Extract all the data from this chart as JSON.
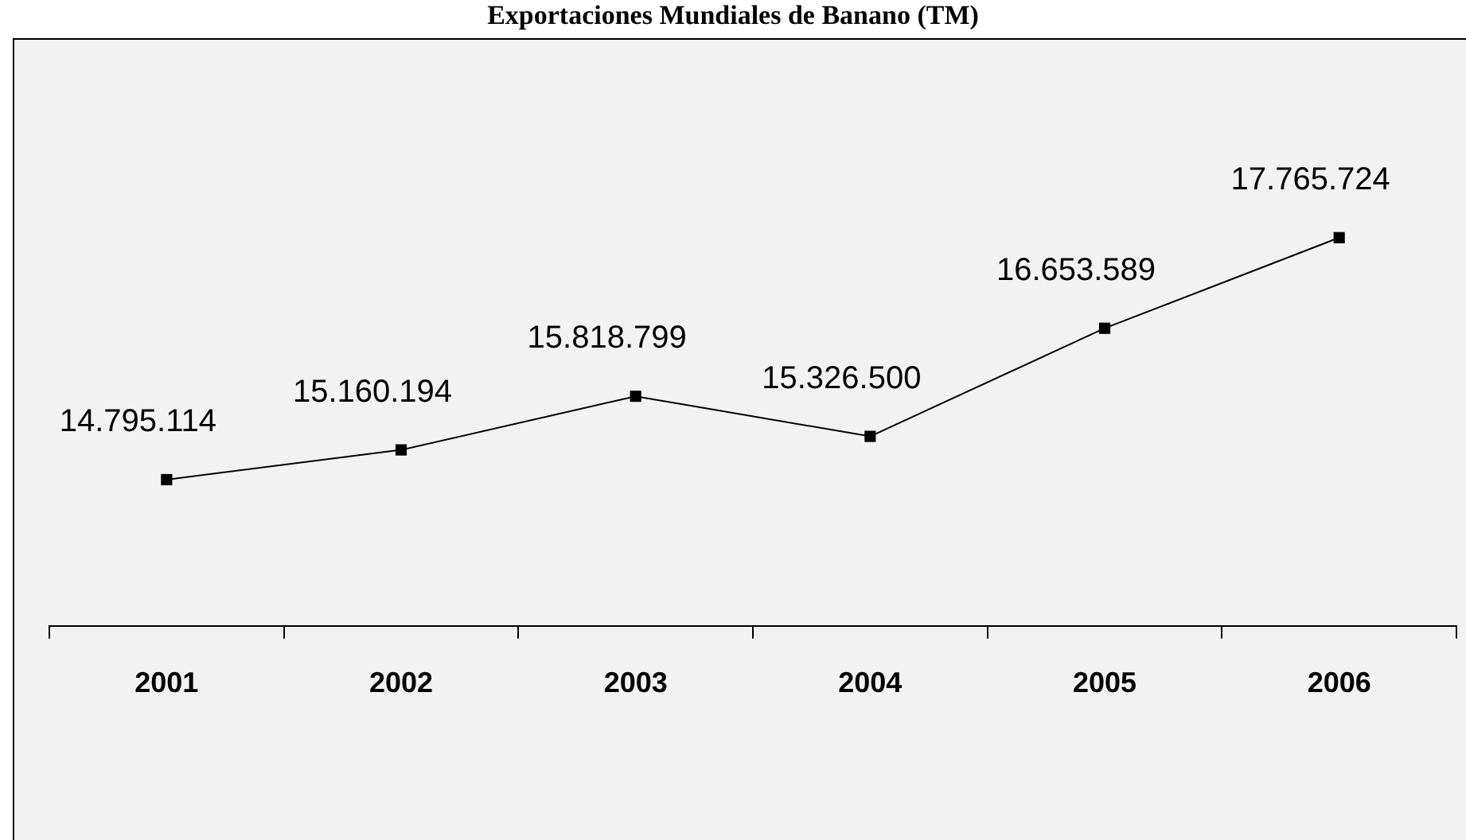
{
  "chart_data": {
    "type": "line",
    "title": "Exportaciones Mundiales de Banano  (TM)",
    "categories": [
      "2001",
      "2002",
      "2003",
      "2004",
      "2005",
      "2006"
    ],
    "series": [
      {
        "color": "#000000",
        "values": [
          14795114,
          15160194,
          15818799,
          15326500,
          16653589,
          17765724
        ],
        "value_labels": [
          "14.795.114",
          "15.160.194",
          "15.818.799",
          "15.326.500",
          "16.653.589",
          "17.765.724"
        ]
      }
    ],
    "marker": "square",
    "legend": false,
    "grid": false,
    "tick_labels": "x"
  }
}
